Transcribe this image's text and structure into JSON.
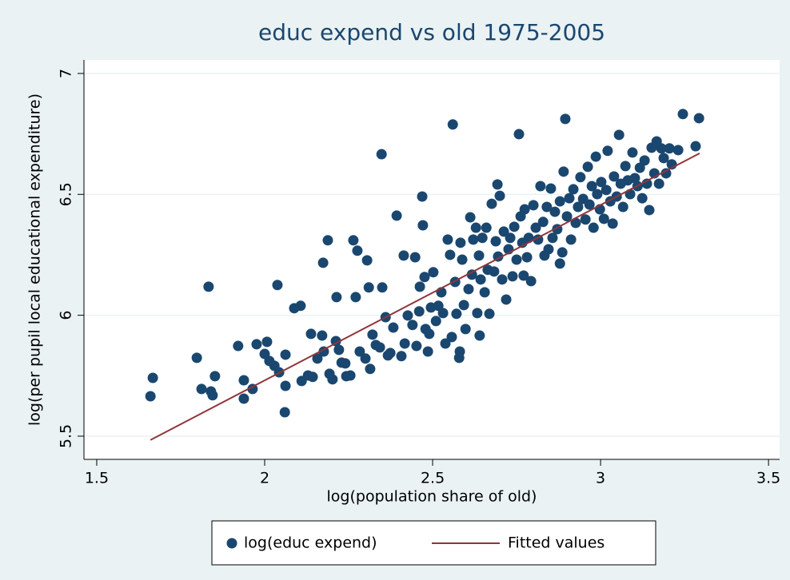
{
  "chart_data": {
    "type": "scatter",
    "title": "educ expend vs old 1975-2005",
    "x_label": "log(population share of old)",
    "y_label": "log(per pupil local educational expenditure)",
    "xlim": [
      1.462,
      3.533
    ],
    "ylim": [
      5.404,
      7.056
    ],
    "xticks": [
      1.5,
      2,
      2.5,
      3,
      3.5
    ],
    "yticks": [
      5.5,
      6,
      6.5,
      7
    ],
    "grid": true,
    "legend": "bottom",
    "series": [
      {
        "name": "log(educ expend)",
        "type": "scatter",
        "color": "#1a476f",
        "x": [
          1.66,
          1.667,
          1.798,
          1.812,
          1.84,
          1.845,
          1.852,
          1.833,
          1.921,
          1.938,
          1.938,
          1.964,
          1.976,
          2.0,
          2.007,
          2.014,
          2.029,
          2.038,
          2.043,
          2.062,
          2.062,
          2.06,
          2.088,
          2.107,
          2.11,
          2.129,
          2.138,
          2.143,
          2.157,
          2.171,
          2.174,
          2.188,
          2.176,
          2.193,
          2.202,
          2.212,
          2.221,
          2.229,
          2.24,
          2.214,
          2.243,
          2.255,
          2.264,
          2.271,
          2.276,
          2.283,
          2.3,
          2.305,
          2.31,
          2.314,
          2.321,
          2.331,
          2.343,
          2.348,
          2.35,
          2.36,
          2.367,
          2.374,
          2.383,
          2.393,
          2.407,
          2.414,
          2.417,
          2.426,
          2.44,
          2.448,
          2.452,
          2.46,
          2.462,
          2.469,
          2.471,
          2.476,
          2.479,
          2.486,
          2.49,
          2.495,
          2.502,
          2.51,
          2.517,
          2.526,
          2.531,
          2.538,
          2.545,
          2.552,
          2.557,
          2.56,
          2.567,
          2.571,
          2.579,
          2.583,
          2.588,
          2.593,
          2.598,
          2.607,
          2.612,
          2.617,
          2.621,
          2.629,
          2.633,
          2.638,
          2.643,
          2.648,
          2.655,
          2.66,
          2.664,
          2.669,
          2.676,
          2.683,
          2.688,
          2.693,
          2.695,
          2.7,
          2.707,
          2.712,
          2.719,
          2.726,
          2.731,
          2.738,
          2.743,
          2.75,
          2.757,
          2.762,
          2.767,
          2.774,
          2.781,
          2.786,
          2.793,
          2.8,
          2.807,
          2.814,
          2.821,
          2.829,
          2.833,
          2.84,
          2.845,
          2.852,
          2.857,
          2.864,
          2.871,
          2.879,
          2.886,
          2.89,
          2.895,
          2.9,
          2.907,
          2.912,
          2.919,
          2.926,
          2.933,
          2.94,
          2.948,
          2.955,
          2.962,
          2.967,
          2.974,
          2.979,
          2.986,
          2.99,
          2.998,
          3.002,
          3.01,
          3.017,
          3.021,
          3.029,
          3.036,
          3.04,
          3.048,
          3.055,
          3.06,
          3.067,
          3.074,
          3.081,
          3.088,
          3.095,
          3.102,
          3.11,
          3.117,
          3.124,
          3.131,
          3.138,
          3.145,
          3.152,
          3.16,
          3.167,
          3.174,
          3.181,
          3.188,
          3.195,
          3.205,
          3.212,
          3.231,
          3.245,
          3.283,
          3.293,
          2.581,
          2.64,
          2.771,
          2.879
        ],
        "values": [
          5.665,
          5.741,
          5.824,
          5.695,
          5.685,
          5.669,
          5.748,
          6.118,
          5.873,
          5.731,
          5.655,
          5.695,
          5.88,
          5.84,
          5.89,
          5.811,
          5.791,
          6.125,
          5.764,
          5.837,
          5.708,
          5.599,
          6.029,
          6.039,
          5.728,
          5.751,
          5.923,
          5.745,
          5.821,
          5.916,
          6.217,
          6.31,
          5.85,
          5.758,
          5.735,
          5.893,
          5.857,
          5.804,
          5.801,
          6.075,
          5.748,
          5.751,
          6.31,
          6.075,
          6.267,
          5.85,
          5.821,
          6.227,
          6.115,
          5.778,
          5.92,
          5.877,
          5.867,
          6.666,
          6.115,
          5.992,
          5.834,
          5.844,
          5.949,
          6.412,
          5.831,
          6.247,
          5.883,
          5.999,
          5.96,
          6.24,
          5.873,
          6.016,
          6.118,
          6.491,
          6.372,
          6.158,
          5.943,
          5.85,
          5.923,
          6.032,
          6.178,
          5.976,
          6.039,
          6.095,
          6.009,
          5.883,
          6.313,
          6.25,
          5.91,
          6.789,
          6.138,
          6.006,
          5.824,
          6.3,
          6.23,
          6.042,
          5.943,
          6.108,
          6.405,
          6.168,
          6.313,
          6.362,
          6.009,
          6.247,
          6.148,
          6.32,
          6.095,
          6.362,
          6.188,
          6.006,
          6.461,
          6.181,
          6.306,
          6.541,
          6.243,
          6.494,
          6.148,
          6.346,
          6.065,
          6.273,
          6.32,
          6.161,
          6.366,
          6.23,
          6.749,
          6.409,
          6.3,
          6.438,
          6.24,
          6.32,
          6.141,
          6.455,
          6.362,
          6.313,
          6.534,
          6.386,
          6.247,
          6.448,
          6.273,
          6.524,
          6.32,
          6.428,
          6.356,
          6.471,
          6.26,
          6.594,
          6.812,
          6.409,
          6.484,
          6.313,
          6.521,
          6.382,
          6.448,
          6.571,
          6.481,
          6.396,
          6.614,
          6.458,
          6.534,
          6.362,
          6.656,
          6.501,
          6.438,
          6.551,
          6.399,
          6.518,
          6.68,
          6.471,
          6.379,
          6.574,
          6.491,
          6.746,
          6.544,
          6.448,
          6.617,
          6.558,
          6.501,
          6.673,
          6.567,
          6.534,
          6.61,
          6.484,
          6.64,
          6.544,
          6.435,
          6.693,
          6.587,
          6.719,
          6.544,
          6.69,
          6.65,
          6.587,
          6.69,
          6.624,
          6.683,
          6.832,
          6.699,
          6.815,
          5.85,
          5.916,
          6.164,
          6.214
        ]
      },
      {
        "name": "Fitted values",
        "type": "line",
        "color": "#90353b",
        "x": [
          1.66,
          3.295
        ],
        "values": [
          5.484,
          6.67
        ]
      }
    ]
  }
}
